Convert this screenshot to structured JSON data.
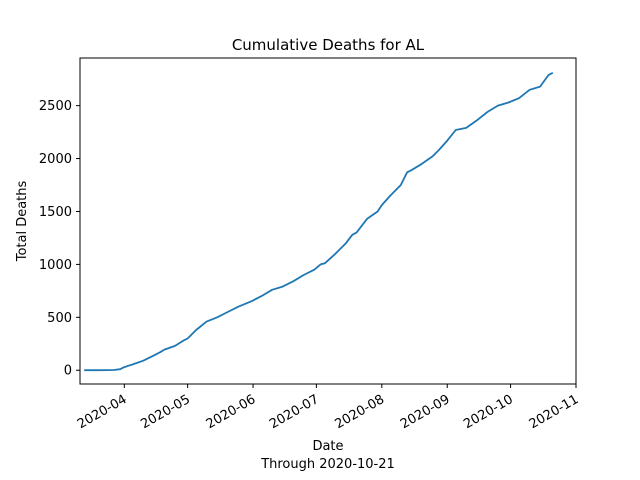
{
  "chart_data": {
    "type": "line",
    "title": "Cumulative Deaths for AL",
    "xlabel": "Date",
    "xlabel_sub": "Through 2020-10-21",
    "ylabel": "Total Deaths",
    "xlim": [
      "2020-03-11",
      "2020-11-01"
    ],
    "ylim": [
      -130,
      2950
    ],
    "x_ticks": [
      "2020-04",
      "2020-05",
      "2020-06",
      "2020-07",
      "2020-08",
      "2020-09",
      "2020-10",
      "2020-11"
    ],
    "y_ticks": [
      0,
      500,
      1000,
      1500,
      2000,
      2500
    ],
    "grid": false,
    "color": "#1f77b4",
    "series": [
      {
        "x": [
          "2020-03-13",
          "2020-03-20",
          "2020-03-27",
          "2020-03-30",
          "2020-04-01",
          "2020-04-05",
          "2020-04-10",
          "2020-04-15",
          "2020-04-18",
          "2020-04-20",
          "2020-04-25",
          "2020-04-29",
          "2020-05-01",
          "2020-05-05",
          "2020-05-10",
          "2020-05-15",
          "2020-05-20",
          "2020-05-25",
          "2020-05-31",
          "2020-06-01",
          "2020-06-05",
          "2020-06-10",
          "2020-06-15",
          "2020-06-20",
          "2020-06-25",
          "2020-06-30",
          "2020-07-03",
          "2020-07-05",
          "2020-07-10",
          "2020-07-15",
          "2020-07-18",
          "2020-07-20",
          "2020-07-25",
          "2020-07-30",
          "2020-08-01",
          "2020-08-05",
          "2020-08-10",
          "2020-08-13",
          "2020-08-15",
          "2020-08-20",
          "2020-08-25",
          "2020-08-28",
          "2020-09-01",
          "2020-09-05",
          "2020-09-10",
          "2020-09-15",
          "2020-09-20",
          "2020-09-25",
          "2020-09-30",
          "2020-10-05",
          "2020-10-10",
          "2020-10-15",
          "2020-10-19",
          "2020-10-21"
        ],
        "y": [
          0,
          0,
          2,
          10,
          30,
          55,
          90,
          140,
          170,
          195,
          230,
          280,
          300,
          380,
          460,
          500,
          550,
          600,
          650,
          660,
          700,
          760,
          790,
          840,
          900,
          950,
          1000,
          1010,
          1100,
          1200,
          1280,
          1300,
          1430,
          1500,
          1560,
          1650,
          1750,
          1870,
          1890,
          1950,
          2020,
          2080,
          2170,
          2270,
          2290,
          2360,
          2440,
          2500,
          2530,
          2570,
          2650,
          2680,
          2790,
          2810
        ]
      }
    ]
  }
}
